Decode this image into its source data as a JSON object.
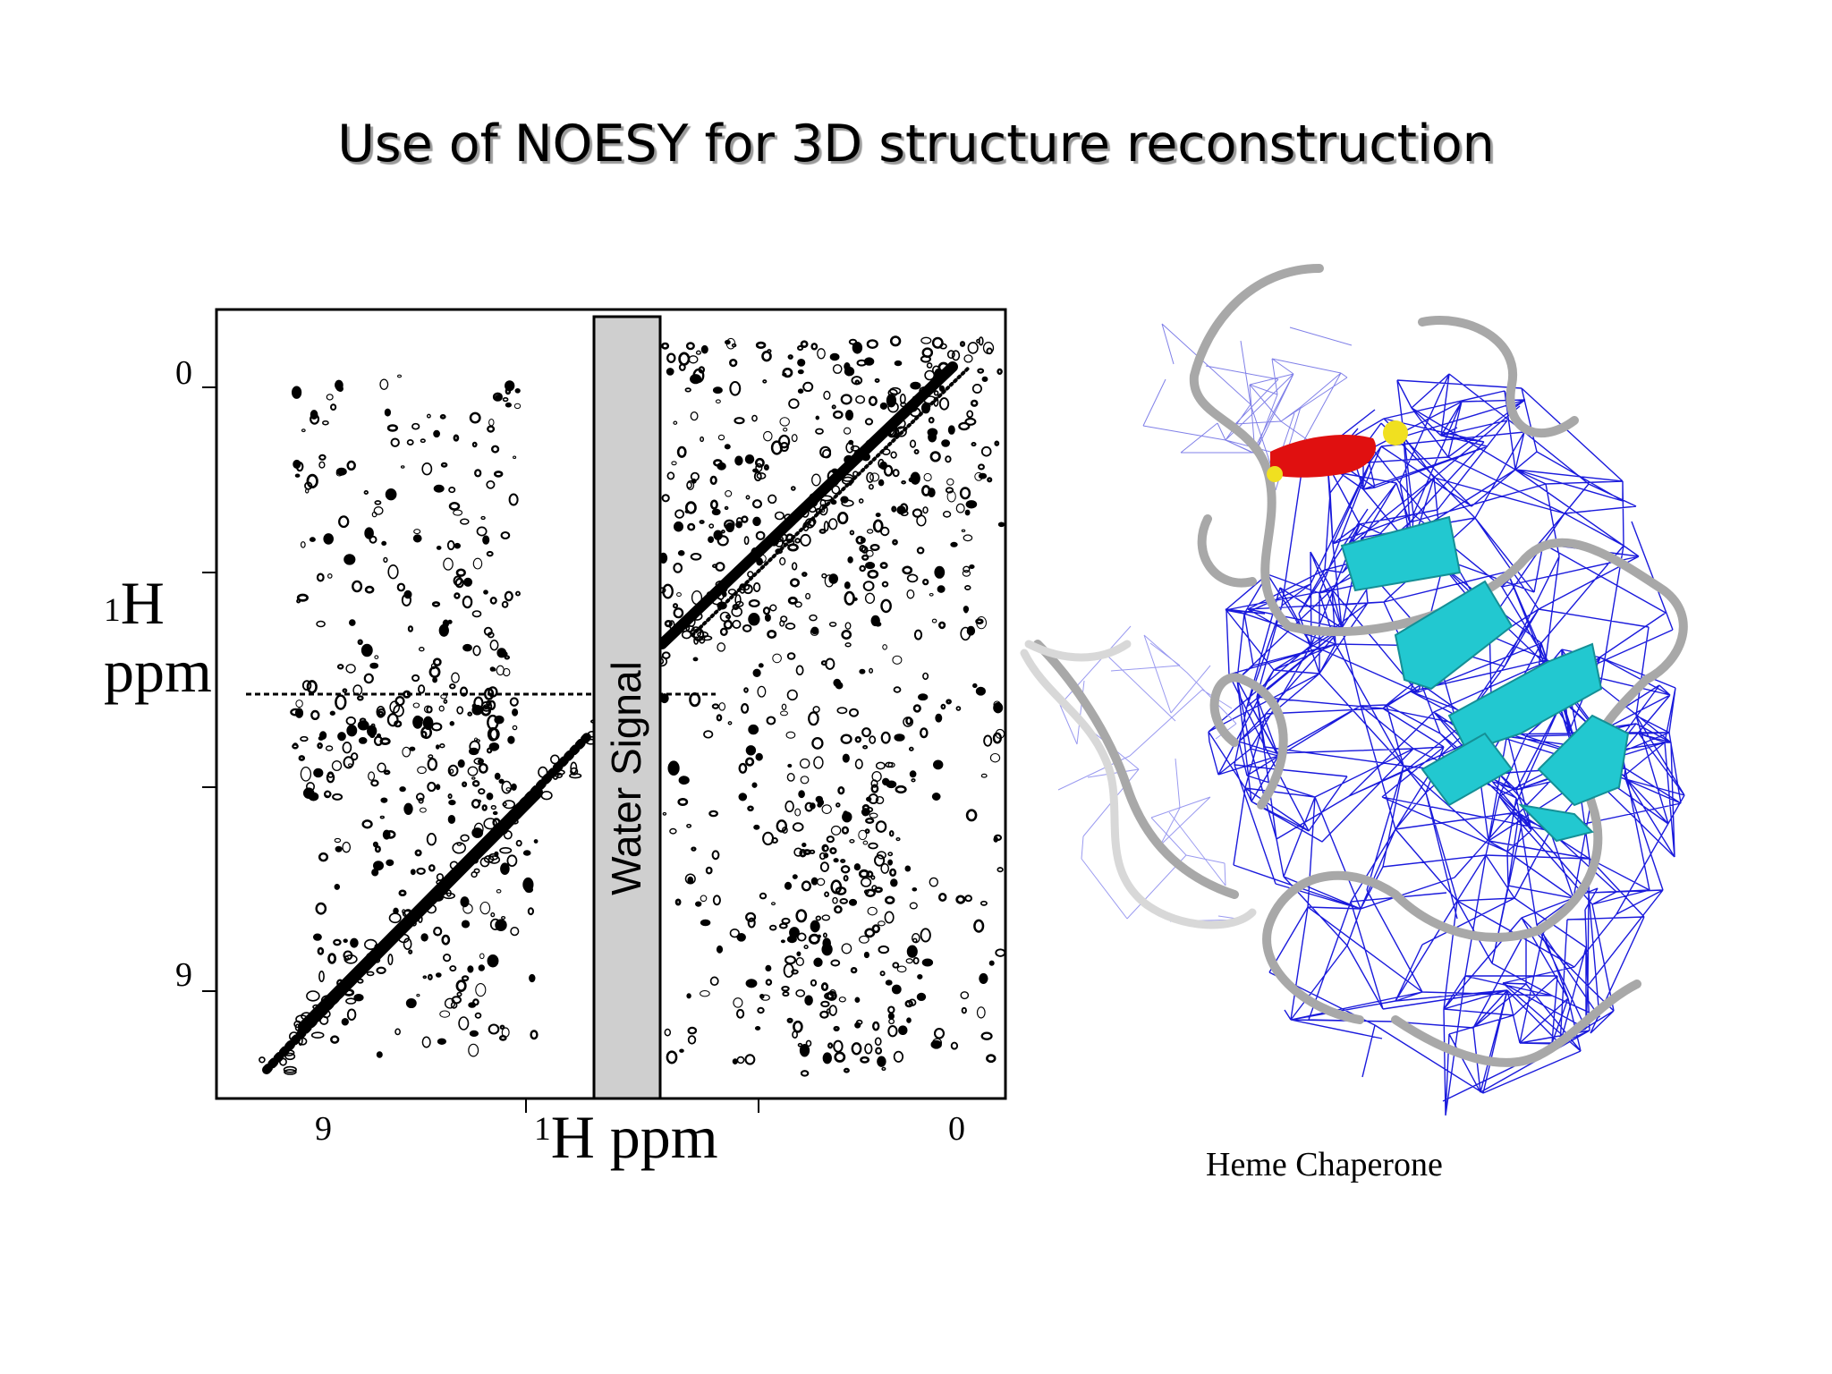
{
  "slide": {
    "title": "Use of NOESY for 3D structure reconstruction"
  },
  "spectrum": {
    "y_axis_label_sup": "1",
    "y_axis_label_main": "H",
    "y_axis_label_unit": "ppm",
    "x_axis_label_sup": "1",
    "x_axis_label_main": "H ppm",
    "y_ticks": [
      "0",
      "9"
    ],
    "x_ticks": [
      "9",
      "0"
    ],
    "water_band_label": "Water Signal",
    "colors": {
      "ink": "#000000",
      "water_band": "#cfcfcf"
    }
  },
  "structure": {
    "caption": "Heme Chaperone",
    "colors": {
      "restraints": "#1a1adc",
      "backbone": "#a8a8a8",
      "helix": "#e01010",
      "sheet": "#22c8d0",
      "heme_end": "#f0e020"
    }
  }
}
